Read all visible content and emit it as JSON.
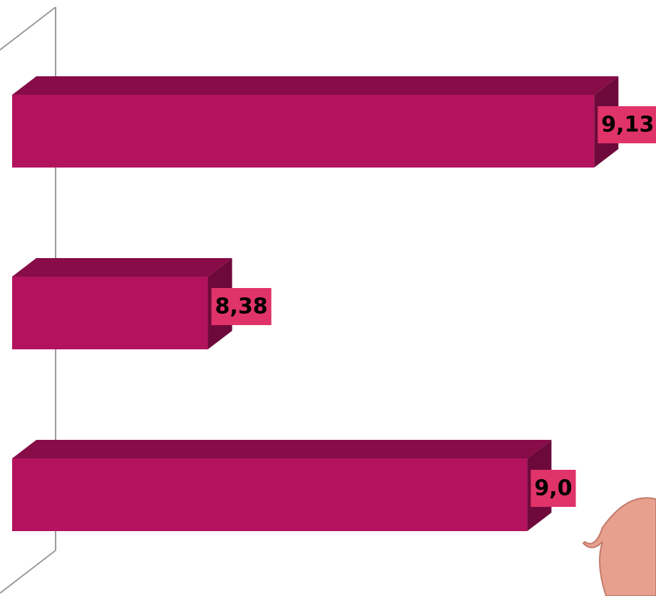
{
  "chart_data": {
    "type": "bar3d",
    "orientation": "horizontal",
    "categories": [
      null,
      null,
      null
    ],
    "values": [
      9.13,
      8.38,
      9.0
    ],
    "value_labels": [
      "9,13",
      "8,38",
      "9,0"
    ],
    "color": "#b3135e",
    "xlim": [
      8,
      9.25
    ]
  }
}
